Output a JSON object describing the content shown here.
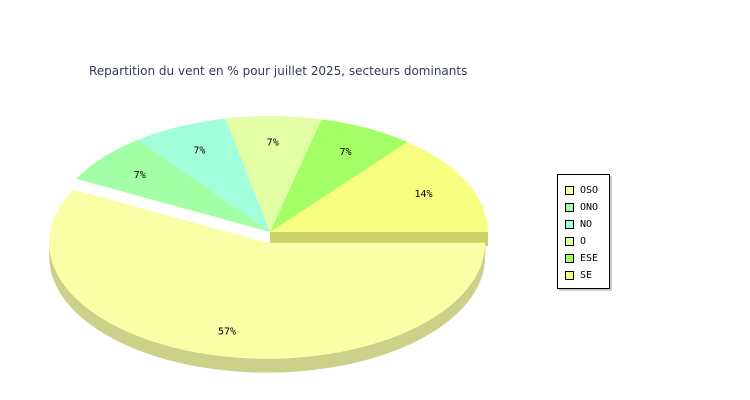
{
  "chart_data": {
    "type": "pie",
    "title": "Repartition du vent en % pour juillet 2025, secteurs dominants",
    "slices": [
      {
        "name": "OSO",
        "value": 57,
        "label": "57%",
        "color": "#f8ffa6",
        "exploded": true
      },
      {
        "name": "ONO",
        "value": 7,
        "label": "7%",
        "color": "#a2ffa6"
      },
      {
        "name": "NO",
        "value": 7,
        "label": "7%",
        "color": "#a2ffdc"
      },
      {
        "name": "O",
        "value": 7,
        "label": "7%",
        "color": "#e2ffa6"
      },
      {
        "name": "ESE",
        "value": 7,
        "label": "7%",
        "color": "#a4ff66"
      },
      {
        "name": "SE",
        "value": 14,
        "label": "14%",
        "color": "#f8ff80"
      }
    ],
    "legend_position": "right"
  }
}
